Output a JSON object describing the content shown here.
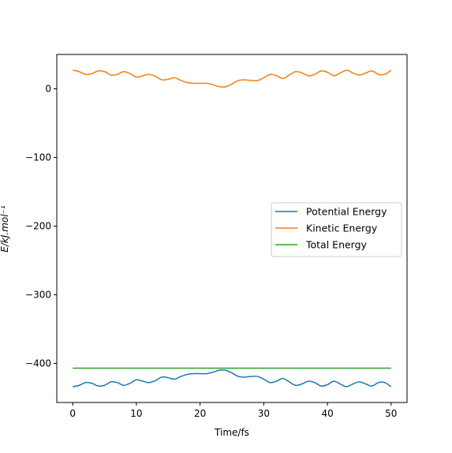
{
  "chart_data": {
    "type": "line",
    "title": "",
    "xlabel": "Time/fs",
    "ylabel": "E/kJ.mol⁻¹",
    "xlim": [
      -2.5,
      52.5
    ],
    "ylim": [
      -457,
      50
    ],
    "xticks": [
      0,
      10,
      20,
      30,
      40,
      50
    ],
    "yticks": [
      -400,
      -300,
      -200,
      -100,
      0
    ],
    "xtick_labels": [
      "0",
      "10",
      "20",
      "30",
      "40",
      "50"
    ],
    "ytick_labels": [
      "−400",
      "−300",
      "−200",
      "−100",
      "0"
    ],
    "grid": false,
    "legend": {
      "placement": "center-right"
    },
    "series": [
      {
        "name": "Potential Energy",
        "color": "#1f77b4",
        "x": [
          0,
          1,
          2,
          3,
          4,
          5,
          6,
          7,
          8,
          9,
          10,
          11,
          12,
          13,
          14,
          15,
          16,
          17,
          18,
          19,
          20,
          21,
          22,
          23,
          24,
          25,
          26,
          27,
          28,
          29,
          30,
          31,
          32,
          33,
          34,
          35,
          36,
          37,
          38,
          39,
          40,
          41,
          42,
          43,
          44,
          45,
          46,
          47,
          48,
          49,
          50
        ],
        "values": [
          -434,
          -432,
          -428,
          -429,
          -433,
          -432,
          -427,
          -428,
          -432,
          -429,
          -424,
          -426,
          -428,
          -425,
          -420,
          -421,
          -423,
          -419,
          -416,
          -415,
          -415,
          -415,
          -413,
          -410,
          -410,
          -414,
          -419,
          -420,
          -419,
          -419,
          -423,
          -428,
          -426,
          -422,
          -427,
          -432,
          -430,
          -426,
          -428,
          -433,
          -431,
          -426,
          -430,
          -434,
          -430,
          -427,
          -430,
          -433,
          -428,
          -428,
          -434
        ]
      },
      {
        "name": "Kinetic Energy",
        "color": "#ff7f0e",
        "x": [
          0,
          1,
          2,
          3,
          4,
          5,
          6,
          7,
          8,
          9,
          10,
          11,
          12,
          13,
          14,
          15,
          16,
          17,
          18,
          19,
          20,
          21,
          22,
          23,
          24,
          25,
          26,
          27,
          28,
          29,
          30,
          31,
          32,
          33,
          34,
          35,
          36,
          37,
          38,
          39,
          40,
          41,
          42,
          43,
          44,
          45,
          46,
          47,
          48,
          49,
          50
        ],
        "values": [
          27,
          25,
          21,
          22,
          26,
          25,
          20,
          21,
          25,
          22,
          17,
          19,
          21,
          18,
          13,
          14,
          16,
          12,
          9,
          8,
          8,
          8,
          6,
          3,
          3,
          7,
          12,
          13,
          12,
          12,
          16,
          21,
          19,
          15,
          20,
          25,
          23,
          19,
          21,
          26,
          24,
          19,
          23,
          27,
          23,
          20,
          23,
          26,
          21,
          21,
          27
        ]
      },
      {
        "name": "Total Energy",
        "color": "#2ca02c",
        "x": [
          0,
          50
        ],
        "values": [
          -407,
          -407
        ]
      }
    ]
  }
}
